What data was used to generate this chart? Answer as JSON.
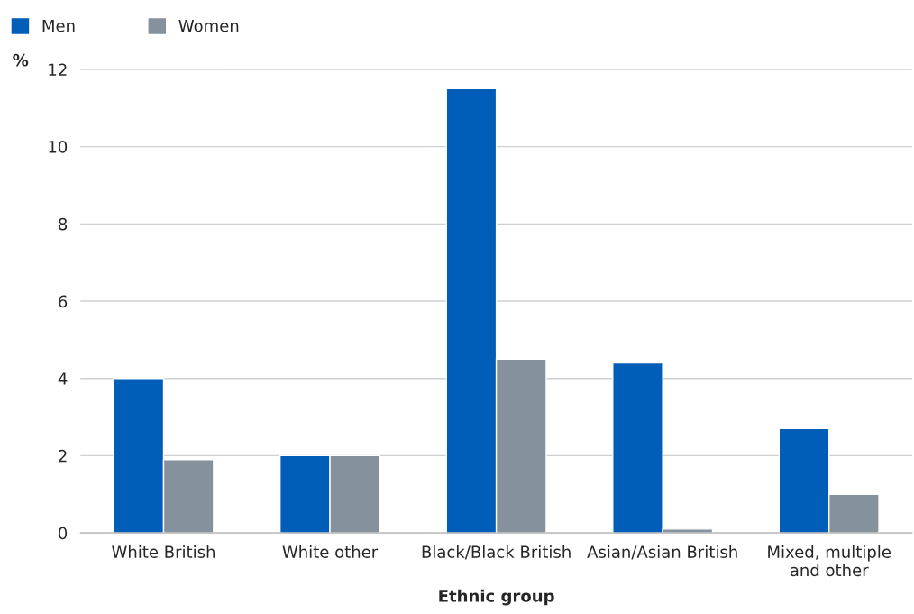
{
  "chart_data": {
    "type": "bar",
    "xlabel": "Ethnic group",
    "ylabel": "%",
    "categories": [
      "White British",
      "White other",
      "Black/Black British",
      "Asian/Asian British",
      "Mixed, multiple\nand other"
    ],
    "series": [
      {
        "name": "Men",
        "color": "#005eb8",
        "values": [
          4.0,
          2.0,
          11.5,
          4.4,
          2.7
        ]
      },
      {
        "name": "Women",
        "color": "#85919c",
        "values": [
          1.9,
          2.0,
          4.5,
          0.1,
          1.0
        ]
      }
    ],
    "ylim": [
      0,
      12
    ],
    "yticks": [
      0,
      2,
      4,
      6,
      8,
      10,
      12
    ],
    "grid": "y",
    "legend": "top left"
  }
}
